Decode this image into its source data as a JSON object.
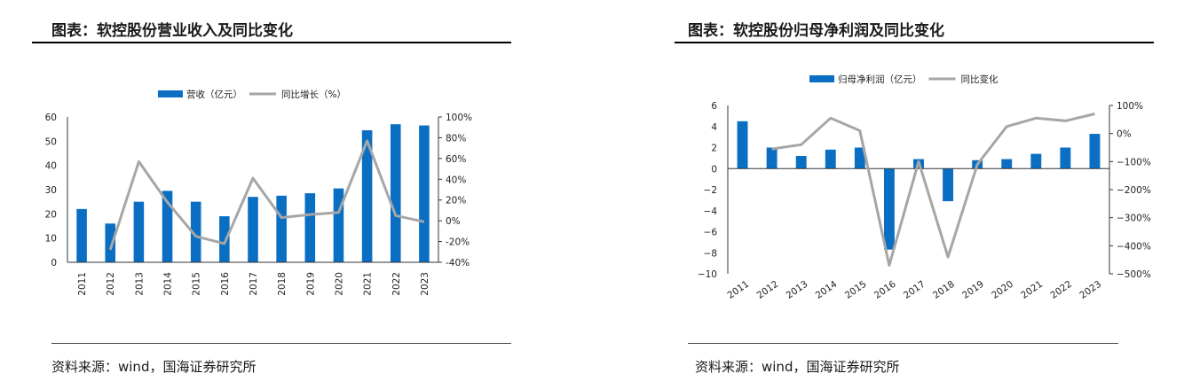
{
  "left": {
    "title": "图表：软控股份营业收入及同比变化",
    "source": "资料来源：wind，国海证券研究所"
  },
  "right": {
    "title": "图表：软控股份归母净利润及同比变化",
    "source": "资料来源：wind，国海证券研究所"
  },
  "chart_data": [
    {
      "type": "bar",
      "categories": [
        "2011",
        "2012",
        "2013",
        "2014",
        "2015",
        "2016",
        "2017",
        "2018",
        "2019",
        "2020",
        "2021",
        "2022",
        "2023"
      ],
      "series": [
        {
          "name": "营收（亿元）",
          "type": "bar",
          "axis": "left",
          "color": "#0a6fc2",
          "values": [
            22,
            16,
            25,
            29.5,
            25,
            19,
            27,
            27.5,
            28.5,
            30.5,
            54.5,
            57,
            56.5
          ]
        },
        {
          "name": "同比增长（%）",
          "type": "line",
          "axis": "right",
          "color": "#a6a6a6",
          "values": [
            null,
            -28,
            57,
            18,
            -15,
            -22,
            41,
            3,
            6,
            8,
            77,
            5,
            -1
          ]
        }
      ],
      "ylim_left": [
        0,
        60
      ],
      "yticks_left": [
        "0",
        "10",
        "20",
        "30",
        "40",
        "50",
        "60"
      ],
      "ylim_right": [
        -40,
        100
      ],
      "yticks_right": [
        "-40%",
        "-20%",
        "0%",
        "20%",
        "40%",
        "60%",
        "80%",
        "100%"
      ],
      "legend": "top-center",
      "grid": false
    },
    {
      "type": "bar",
      "categories": [
        "2011",
        "2012",
        "2013",
        "2014",
        "2015",
        "2016",
        "2017",
        "2018",
        "2019",
        "2020",
        "2021",
        "2022",
        "2023"
      ],
      "series": [
        {
          "name": "归母净利润（亿元）",
          "type": "bar",
          "axis": "left",
          "color": "#0a6fc2",
          "values": [
            4.5,
            2.0,
            1.2,
            1.8,
            2.0,
            -7.7,
            0.9,
            -3.1,
            0.8,
            0.9,
            1.4,
            2.0,
            3.3
          ]
        },
        {
          "name": "同比变化",
          "type": "line",
          "axis": "right",
          "color": "#a6a6a6",
          "values": [
            null,
            -55,
            -40,
            55,
            10,
            -470,
            -100,
            -440,
            -110,
            25,
            55,
            45,
            70
          ]
        }
      ],
      "ylim_left": [
        -10,
        6
      ],
      "yticks_left": [
        "6",
        "4",
        "2",
        "0",
        "−2",
        "−4",
        "−6",
        "−8",
        "−10"
      ],
      "ylim_right": [
        -500,
        100
      ],
      "yticks_right": [
        "100%",
        "0%",
        "−100%",
        "−200%",
        "−300%",
        "−400%",
        "−500%"
      ],
      "legend": "top-center",
      "grid": false
    }
  ]
}
